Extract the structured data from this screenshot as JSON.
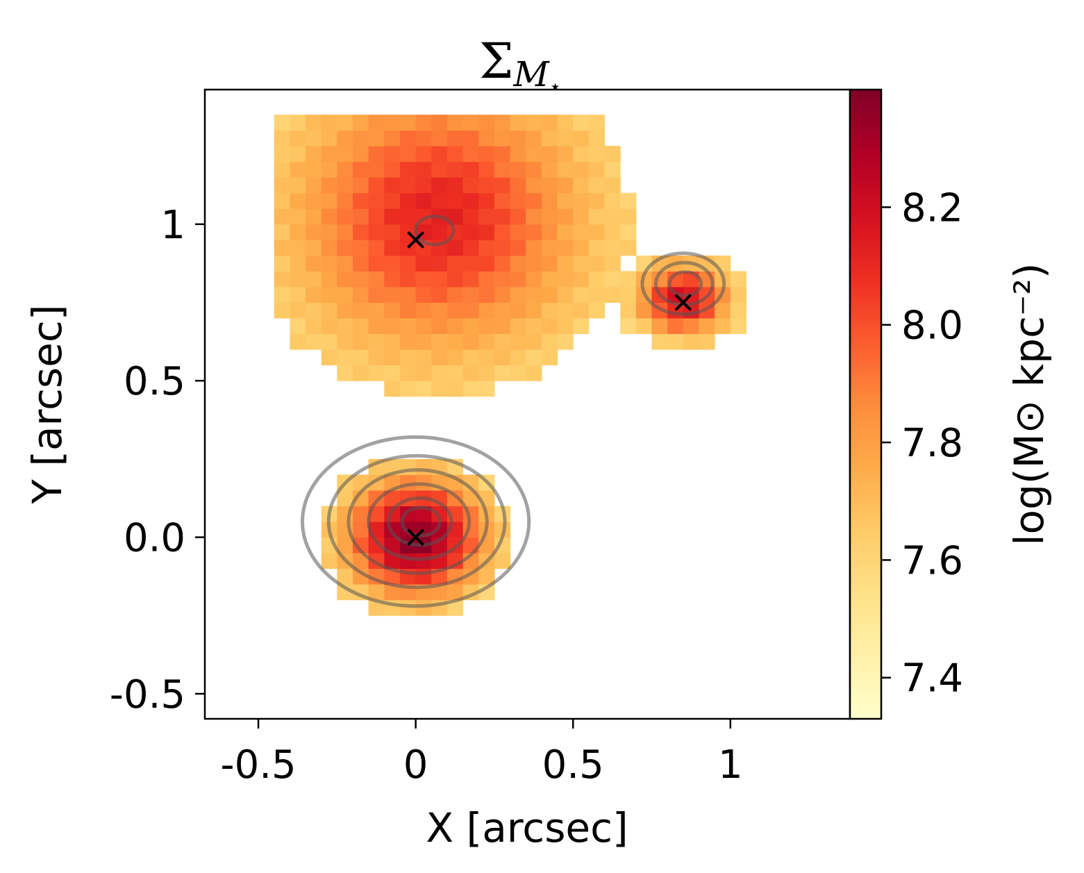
{
  "chart_data": {
    "type": "heatmap",
    "title": "Σ",
    "title_sub": "M",
    "title_subsub": "⋆",
    "xlabel": "X [arcsec]",
    "ylabel": "Y [arcsec]",
    "xlim": [
      -0.67,
      1.38
    ],
    "ylim": [
      -0.58,
      1.43
    ],
    "xticks": [
      -0.5,
      0,
      0.5,
      1
    ],
    "xtick_labels": [
      "-0.5",
      "0",
      "0.5",
      "1"
    ],
    "yticks": [
      -0.5,
      0.0,
      0.5,
      1
    ],
    "ytick_labels": [
      "-0.5",
      "0.0",
      "0.5",
      "1"
    ],
    "colorbar": {
      "label": "log(M⊙ kpc⁻²)",
      "range": [
        7.33,
        8.4
      ],
      "ticks": [
        7.4,
        7.6,
        7.8,
        8.0,
        8.2
      ],
      "tick_labels": [
        "7.4",
        "7.6",
        "7.8",
        "8.0",
        "8.2"
      ],
      "colormap": [
        "#ffffcc",
        "#fff1a9",
        "#fee187",
        "#feca66",
        "#feab49",
        "#fd8c3c",
        "#fc5b2e",
        "#ed2e21",
        "#d41020",
        "#b00026",
        "#800026"
      ]
    },
    "pixel_size_arcsec": 0.05,
    "components": [
      {
        "x0": 0.0,
        "y0": 0.0,
        "peak": 8.38,
        "sx": 0.15,
        "sy": 0.13,
        "base": 7.5
      },
      {
        "x0": 0.07,
        "y0": 1.02,
        "peak": 8.12,
        "sx": 0.3,
        "sy": 0.28,
        "base": 7.55
      },
      {
        "x0": 0.85,
        "y0": 0.76,
        "peak": 8.2,
        "sx": 0.1,
        "sy": 0.08,
        "base": 7.5
      }
    ],
    "markers": [
      {
        "x": 0.0,
        "y": 0.0
      },
      {
        "x": 0.0,
        "y": 0.95
      },
      {
        "x": 0.85,
        "y": 0.75
      }
    ],
    "contour_color": "#555555"
  }
}
